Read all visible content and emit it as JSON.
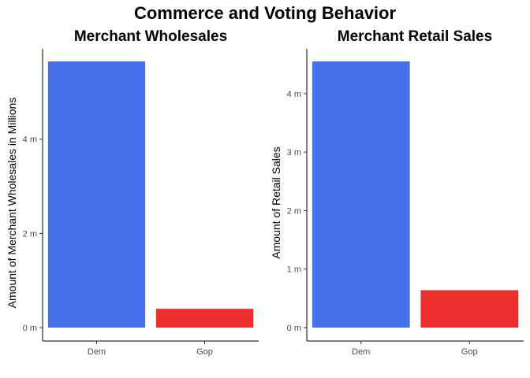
{
  "title": "Commerce and Voting Behavior",
  "chart_data": [
    {
      "type": "bar",
      "title": "Merchant Wholesales",
      "xlabel": "",
      "ylabel": "Amount of Merchant Wholesales in Millions",
      "categories": [
        "Dem",
        "Gop"
      ],
      "values": [
        5.65,
        0.4
      ],
      "colors": [
        "#4571ec",
        "#ee2f2f"
      ],
      "ylim": [
        0,
        5.65
      ],
      "yticks": [
        0,
        2,
        4
      ],
      "ytick_labels": [
        "0 m",
        "2 m",
        "4 m"
      ],
      "grid": false
    },
    {
      "type": "bar",
      "title": "Merchant Retail Sales",
      "xlabel": "",
      "ylabel": "Amount of Retail Sales",
      "categories": [
        "Dem",
        "Gop"
      ],
      "values": [
        4.55,
        0.64
      ],
      "colors": [
        "#4571ec",
        "#ee2f2f"
      ],
      "ylim": [
        0,
        4.55
      ],
      "yticks": [
        0,
        1,
        2,
        3,
        4
      ],
      "ytick_labels": [
        "0 m",
        "1 m",
        "2 m",
        "3 m",
        "4 m"
      ],
      "grid": false
    }
  ]
}
